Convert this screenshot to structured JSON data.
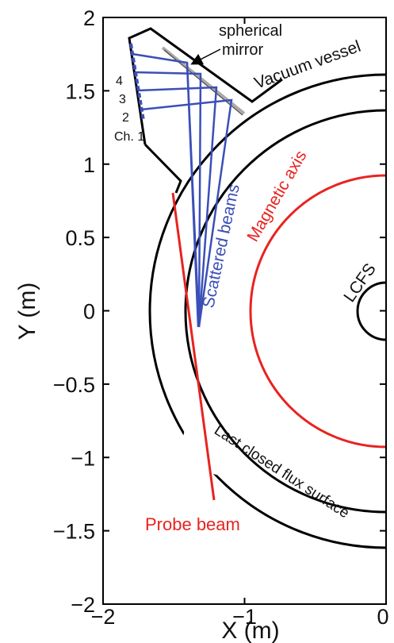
{
  "figure": {
    "xlabel": "X (m)",
    "ylabel": "Y (m)",
    "xlim": [
      -2,
      0
    ],
    "ylim": [
      -2,
      2
    ],
    "x_ticks": [
      {
        "value": -2,
        "label": "−2"
      },
      {
        "value": -1,
        "label": "−1"
      },
      {
        "value": 0,
        "label": "0"
      }
    ],
    "y_ticks": [
      {
        "value": 2,
        "label": "2"
      },
      {
        "value": 1.5,
        "label": "1.5"
      },
      {
        "value": 1,
        "label": "1"
      },
      {
        "value": 0.5,
        "label": "0.5"
      },
      {
        "value": 0,
        "label": "0"
      },
      {
        "value": -0.5,
        "label": "−0.5"
      },
      {
        "value": -1,
        "label": "−1"
      },
      {
        "value": -1.5,
        "label": "−1.5"
      },
      {
        "value": -2,
        "label": "−2"
      }
    ],
    "colors": {
      "axis": "#000000",
      "red": "#e8231f",
      "blue": "#3b4fb8",
      "mirror": "#a9a9a9"
    }
  },
  "annotations": {
    "mirror": "spherical\nmirror",
    "vessel": "Vacuum vessel",
    "magnetic_axis": "Magnetic axis",
    "scattered": "Scattered beams",
    "lcfs": "LCFS",
    "last_closed": "Last closed flux surface",
    "probe": "Probe beam",
    "ch4": "4",
    "ch3": "3",
    "ch2": "2",
    "ch1": "Ch. 1"
  },
  "chart_data": {
    "type": "diagram",
    "xlabel": "X (m)",
    "ylabel": "Y (m)",
    "xlim": [
      -2,
      0
    ],
    "ylim": [
      -2,
      2
    ],
    "magnetic_axis_radius": 0.97,
    "lcfs_inner_radius": 0.2,
    "outer_flux_surface_radius": 1.43,
    "vessel_wall_radius": 1.69,
    "scattering_point": [
      -1.3,
      -0.18
    ],
    "channels": [
      "Ch. 1",
      "2",
      "3",
      "4"
    ]
  }
}
